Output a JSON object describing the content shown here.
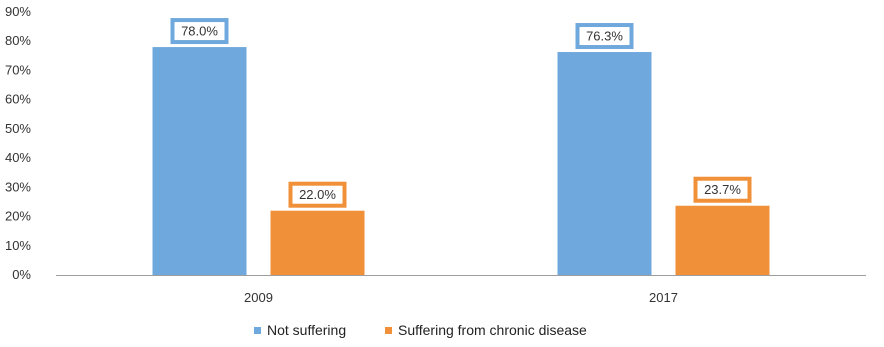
{
  "chart_data": {
    "type": "bar",
    "title": "",
    "xlabel": "",
    "ylabel": "",
    "categories": [
      "2009",
      "2017"
    ],
    "series": [
      {
        "name": "Not suffering",
        "values": [
          78.0,
          76.3
        ],
        "labels": [
          "78.0%",
          "76.3%"
        ],
        "color": "#6fa8dc"
      },
      {
        "name": "Suffering from chronic disease",
        "values": [
          22.0,
          23.7
        ],
        "labels": [
          "22.0%",
          "23.7%"
        ],
        "color": "#f0913a"
      }
    ],
    "ylim": [
      0,
      90
    ],
    "yticks": [
      "0%",
      "10%",
      "20%",
      "30%",
      "40%",
      "50%",
      "60%",
      "70%",
      "80%",
      "90%"
    ],
    "grid": false,
    "legend_position": "bottom",
    "axis_color": "#9e9e9e"
  }
}
